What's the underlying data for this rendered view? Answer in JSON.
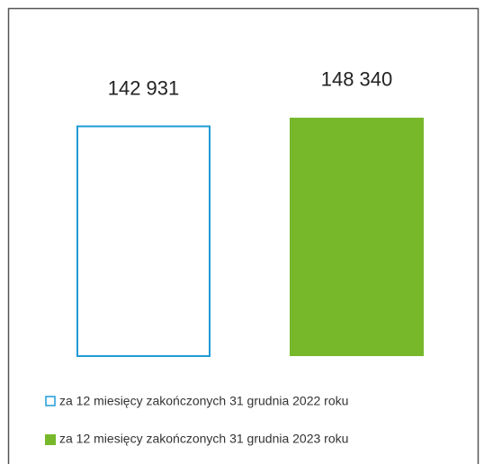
{
  "chart_data": {
    "type": "bar",
    "series": [
      {
        "name": "za 12 miesięcy zakończonych 31 grudnia 2022 roku",
        "color": "#1f9bd7",
        "filled": false,
        "values": [
          142931
        ],
        "value_labels": [
          "142 931"
        ]
      },
      {
        "name": "za 12 miesięcy zakończonych 31 grudnia 2023 roku",
        "color": "#76b82a",
        "filled": true,
        "values": [
          148340
        ],
        "value_labels": [
          "148 340"
        ]
      }
    ],
    "ylim": [
      0,
      160000
    ]
  }
}
